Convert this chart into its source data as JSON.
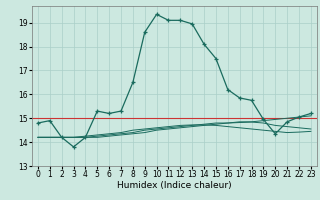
{
  "xlabel": "Humidex (Indice chaleur)",
  "xlim": [
    -0.5,
    23.5
  ],
  "ylim": [
    13.0,
    19.7
  ],
  "yticks": [
    13,
    14,
    15,
    16,
    17,
    18,
    19
  ],
  "xticks": [
    0,
    1,
    2,
    3,
    4,
    5,
    6,
    7,
    8,
    9,
    10,
    11,
    12,
    13,
    14,
    15,
    16,
    17,
    18,
    19,
    20,
    21,
    22,
    23
  ],
  "bg_color": "#cce8e0",
  "grid_color": "#aacfc8",
  "line_color": "#1a6b5e",
  "ref_line_y": 15.0,
  "ref_line_color": "#cc3333",
  "main_y": [
    14.8,
    14.9,
    14.2,
    13.8,
    14.2,
    15.3,
    15.2,
    15.3,
    16.5,
    18.6,
    19.35,
    19.1,
    19.1,
    18.95,
    18.1,
    17.5,
    16.2,
    15.85,
    15.75,
    14.95,
    14.35,
    14.85,
    15.05,
    15.2
  ],
  "line2_y": [
    14.2,
    14.2,
    14.2,
    14.2,
    14.2,
    14.2,
    14.25,
    14.3,
    14.35,
    14.4,
    14.5,
    14.55,
    14.6,
    14.65,
    14.7,
    14.75,
    14.8,
    14.85,
    14.85,
    14.9,
    14.95,
    15.0,
    15.05,
    15.1
  ],
  "line3_y": [
    14.2,
    14.2,
    14.2,
    14.2,
    14.2,
    14.25,
    14.3,
    14.35,
    14.4,
    14.5,
    14.55,
    14.6,
    14.65,
    14.7,
    14.75,
    14.8,
    14.8,
    14.82,
    14.84,
    14.8,
    14.7,
    14.65,
    14.6,
    14.55
  ],
  "line4_y": [
    14.2,
    14.2,
    14.2,
    14.2,
    14.25,
    14.3,
    14.35,
    14.4,
    14.5,
    14.55,
    14.6,
    14.65,
    14.7,
    14.72,
    14.72,
    14.7,
    14.65,
    14.6,
    14.55,
    14.5,
    14.45,
    14.4,
    14.42,
    14.45
  ]
}
